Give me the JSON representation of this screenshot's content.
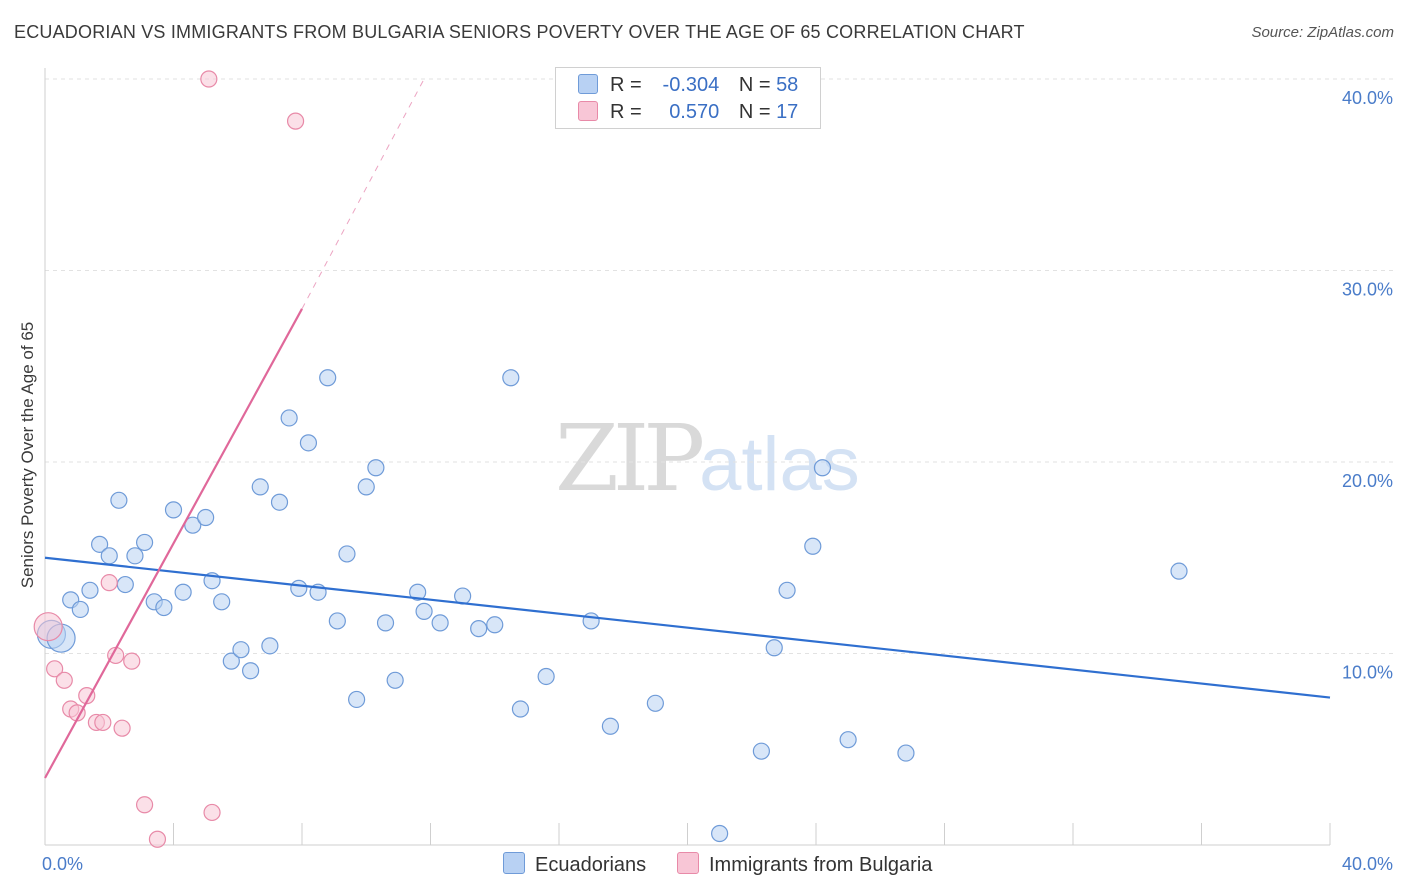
{
  "title": "ECUADORIAN VS IMMIGRANTS FROM BULGARIA SENIORS POVERTY OVER THE AGE OF 65 CORRELATION CHART",
  "source": "Source: ZipAtlas.com",
  "watermark": {
    "zip": "ZIP",
    "atlas": "atlas"
  },
  "legend": {
    "r_label": "R =",
    "n_label": "N =",
    "rows": [
      {
        "r": "-0.304",
        "n": "58",
        "color": "#b8d1f3"
      },
      {
        "r": "0.570",
        "n": "17",
        "color": "#f8c6d6"
      }
    ]
  },
  "bottom_legend": [
    {
      "name": "Ecuadorians",
      "color": "#b8d1f3"
    },
    {
      "name": "Immigrants from Bulgaria",
      "color": "#f8c6d6"
    }
  ],
  "chart_data": {
    "type": "scatter",
    "title": "ECUADORIAN VS IMMIGRANTS FROM BULGARIA SENIORS POVERTY OVER THE AGE OF 65 CORRELATION CHART",
    "xlabel": "",
    "ylabel": "Seniors Poverty Over the Age of 65",
    "xlim": [
      0,
      40
    ],
    "ylim": [
      0,
      40
    ],
    "x_ticks": [
      "0.0%",
      "40.0%"
    ],
    "y_ticks": [
      {
        "value": 10,
        "label": "10.0%"
      },
      {
        "value": 20,
        "label": "20.0%"
      },
      {
        "value": 30,
        "label": "30.0%"
      },
      {
        "value": 40,
        "label": "40.0%"
      }
    ],
    "grid": true,
    "series": [
      {
        "name": "Ecuadorians",
        "color": "#b8d1f3",
        "stroke": "#6f9bd8",
        "trend": {
          "x0": 0,
          "y0": 15.0,
          "x1": 40,
          "y1": 7.7,
          "color": "#2f6fd0"
        },
        "points": [
          [
            0.2,
            11.0
          ],
          [
            0.5,
            10.8
          ],
          [
            0.8,
            12.8
          ],
          [
            1.1,
            12.3
          ],
          [
            1.4,
            13.3
          ],
          [
            1.7,
            15.7
          ],
          [
            2.0,
            15.1
          ],
          [
            2.3,
            18.0
          ],
          [
            2.5,
            13.6
          ],
          [
            2.8,
            15.1
          ],
          [
            3.1,
            15.8
          ],
          [
            3.4,
            12.7
          ],
          [
            3.7,
            12.4
          ],
          [
            4.0,
            17.5
          ],
          [
            4.3,
            13.2
          ],
          [
            4.6,
            16.7
          ],
          [
            5.0,
            17.1
          ],
          [
            5.2,
            13.8
          ],
          [
            5.5,
            12.7
          ],
          [
            5.8,
            9.6
          ],
          [
            6.1,
            10.2
          ],
          [
            6.4,
            9.1
          ],
          [
            6.7,
            18.7
          ],
          [
            7.0,
            10.4
          ],
          [
            7.3,
            17.9
          ],
          [
            7.6,
            22.3
          ],
          [
            7.9,
            13.4
          ],
          [
            8.2,
            21.0
          ],
          [
            8.5,
            13.2
          ],
          [
            8.8,
            24.4
          ],
          [
            9.1,
            11.7
          ],
          [
            9.4,
            15.2
          ],
          [
            9.7,
            7.6
          ],
          [
            10.0,
            18.7
          ],
          [
            10.3,
            19.7
          ],
          [
            10.6,
            11.6
          ],
          [
            10.9,
            8.6
          ],
          [
            11.6,
            13.2
          ],
          [
            11.8,
            12.2
          ],
          [
            12.3,
            11.6
          ],
          [
            13.0,
            13.0
          ],
          [
            13.5,
            11.3
          ],
          [
            14.0,
            11.5
          ],
          [
            14.5,
            24.4
          ],
          [
            14.8,
            7.1
          ],
          [
            15.6,
            8.8
          ],
          [
            17.0,
            11.7
          ],
          [
            17.6,
            6.2
          ],
          [
            19.0,
            7.4
          ],
          [
            21.0,
            0.6
          ],
          [
            22.3,
            4.9
          ],
          [
            22.7,
            10.3
          ],
          [
            23.1,
            13.3
          ],
          [
            23.9,
            15.6
          ],
          [
            24.2,
            19.7
          ],
          [
            25.0,
            5.5
          ],
          [
            26.8,
            4.8
          ],
          [
            35.3,
            14.3
          ]
        ]
      },
      {
        "name": "Immigrants from Bulgaria",
        "color": "#f8c6d6",
        "stroke": "#e88aa8",
        "trend": {
          "x0": 0,
          "y0": 3.5,
          "x1": 8.0,
          "y1": 28.0,
          "dash_x1": 11.8,
          "dash_y1": 40.0,
          "color": "#e0689a"
        },
        "points": [
          [
            0.1,
            11.4
          ],
          [
            0.3,
            9.2
          ],
          [
            0.6,
            8.6
          ],
          [
            0.8,
            7.1
          ],
          [
            1.0,
            6.9
          ],
          [
            1.3,
            7.8
          ],
          [
            1.6,
            6.4
          ],
          [
            1.8,
            6.4
          ],
          [
            2.0,
            13.7
          ],
          [
            2.2,
            9.9
          ],
          [
            2.4,
            6.1
          ],
          [
            2.7,
            9.6
          ],
          [
            3.1,
            2.1
          ],
          [
            3.5,
            0.3
          ],
          [
            5.1,
            40.0
          ],
          [
            5.2,
            1.7
          ],
          [
            7.8,
            37.8
          ]
        ]
      }
    ]
  }
}
